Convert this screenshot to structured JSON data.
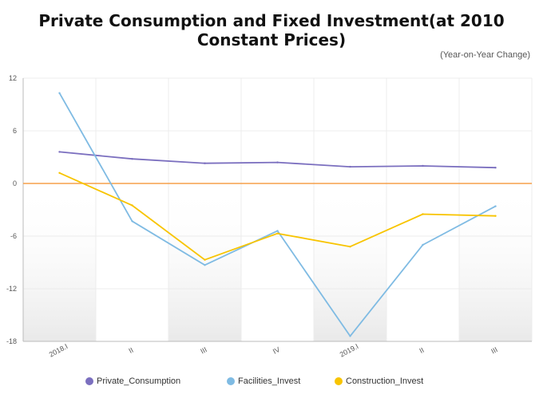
{
  "chart_data": {
    "type": "line",
    "title": "Private Consumption and Fixed Investment(at 2010 Constant Prices)",
    "unit_note": "(Year-on-Year Change)",
    "categories": [
      "2018.I",
      "II",
      "III",
      "IV",
      "2019.I",
      "II",
      "III"
    ],
    "ylim": [
      -18,
      12
    ],
    "yticks": [
      12,
      6,
      0,
      -6,
      -12,
      -18
    ],
    "series": [
      {
        "name": "Private_Consumption",
        "color": "#7b6fbf",
        "values": [
          3.6,
          2.8,
          2.3,
          2.4,
          1.9,
          2.0,
          1.8
        ]
      },
      {
        "name": "Facilities_Invest",
        "color": "#7fbbe3",
        "values": [
          10.3,
          -4.3,
          -9.3,
          -5.4,
          -17.4,
          -7.0,
          -2.6
        ]
      },
      {
        "name": "Construction_Invest",
        "color": "#f8c400",
        "values": [
          1.2,
          -2.5,
          -8.7,
          -5.7,
          -7.2,
          -3.5,
          -3.7
        ]
      }
    ],
    "zero_line_color": "#f5a04a",
    "shaded_bands": [
      "2018.I",
      "III",
      "2019.I"
    ]
  }
}
